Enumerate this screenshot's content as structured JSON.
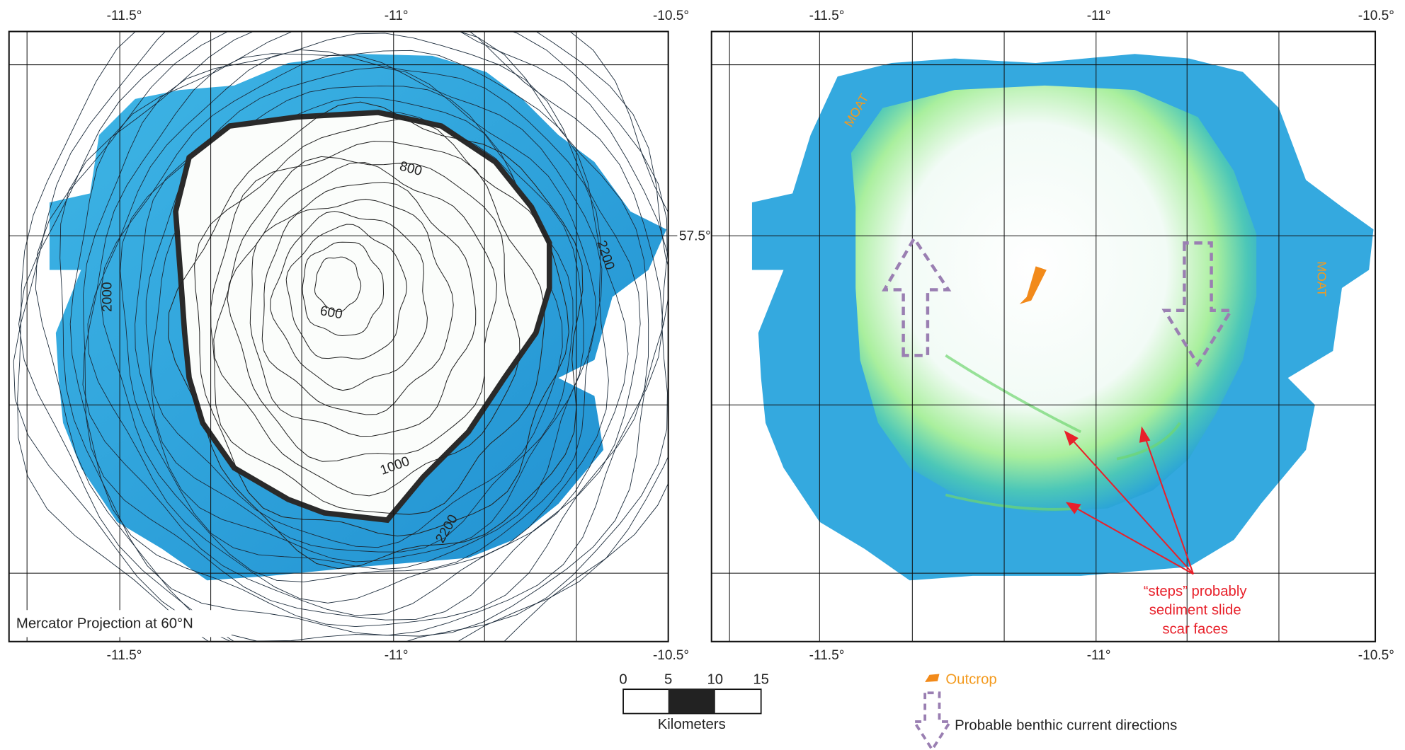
{
  "left_panel": {
    "top_ticks": [
      "-11.5°",
      "-11°",
      "-10.5°"
    ],
    "bottom_ticks": [
      "-11.5°",
      "-11°",
      "-10.5°"
    ],
    "right_tick": "57.5°",
    "contour_labels": [
      "800",
      "600",
      "2200",
      "2000",
      "1000",
      "2200"
    ],
    "projection_note": "Mercator Projection at 60°N"
  },
  "right_panel": {
    "top_ticks": [
      "-11.5°",
      "-11°",
      "-10.5°"
    ],
    "bottom_ticks": [
      "-11.5°",
      "-11°",
      "-10.5°"
    ],
    "moat_labels": [
      "MOAT",
      "MOAT"
    ],
    "annotation": [
      "“steps” probably",
      "sediment slide",
      "scar faces"
    ]
  },
  "scale_bar": {
    "ticks": [
      "0",
      "5",
      "10",
      "15"
    ],
    "unit": "Kilometers"
  },
  "legend": {
    "outcrop": "Outcrop",
    "currents": "Probable benthic current directions"
  }
}
